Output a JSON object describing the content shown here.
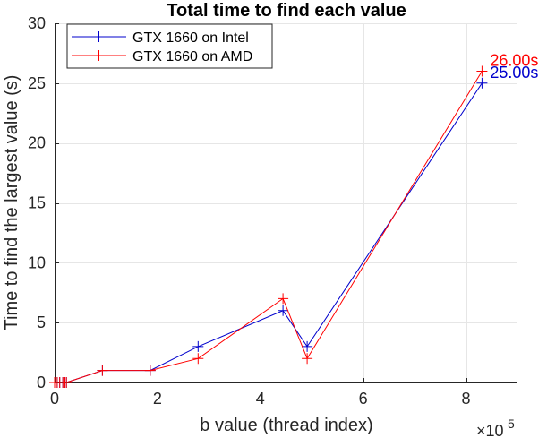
{
  "chart_data": {
    "type": "line",
    "title": "Total time to find each value",
    "xlabel": "b value (thread index)",
    "ylabel": "Time to find the largest value (s)",
    "x_exponent_base": "×10",
    "x_exponent_power": "5",
    "xlim": [
      0,
      9
    ],
    "ylim": [
      0,
      30
    ],
    "x_ticks": [
      0,
      2,
      4,
      6,
      8
    ],
    "x_tick_labels": [
      "0",
      "2",
      "4",
      "6",
      "8"
    ],
    "y_ticks": [
      0,
      5,
      10,
      15,
      20,
      25,
      30
    ],
    "y_tick_labels": [
      "0",
      "5",
      "10",
      "15",
      "20",
      "25",
      "30"
    ],
    "grid": true,
    "legend_position": "top-left",
    "series": [
      {
        "name": "GTX 1660 on Intel",
        "color": "#0000cc",
        "marker": "plus",
        "x": [
          0.0,
          0.05,
          0.1,
          0.16,
          0.2,
          0.23,
          0.93,
          1.86,
          2.79,
          4.44,
          4.91,
          8.31
        ],
        "y": [
          0,
          0,
          0,
          0,
          0,
          0,
          1,
          1,
          3,
          6,
          3,
          25
        ]
      },
      {
        "name": "GTX 1660 on AMD",
        "color": "#ff0000",
        "marker": "plus",
        "x": [
          0.0,
          0.05,
          0.1,
          0.16,
          0.2,
          0.23,
          0.93,
          1.86,
          2.79,
          4.44,
          4.91,
          8.31
        ],
        "y": [
          0,
          0,
          0,
          0,
          0,
          0,
          1,
          1,
          2,
          7,
          2,
          26
        ]
      }
    ],
    "annotations": [
      {
        "text": "26.00s",
        "color": "#ff0000",
        "x": 8.31,
        "y": 26
      },
      {
        "text": "25.00s",
        "color": "#0000cc",
        "x": 8.31,
        "y": 25
      }
    ]
  }
}
